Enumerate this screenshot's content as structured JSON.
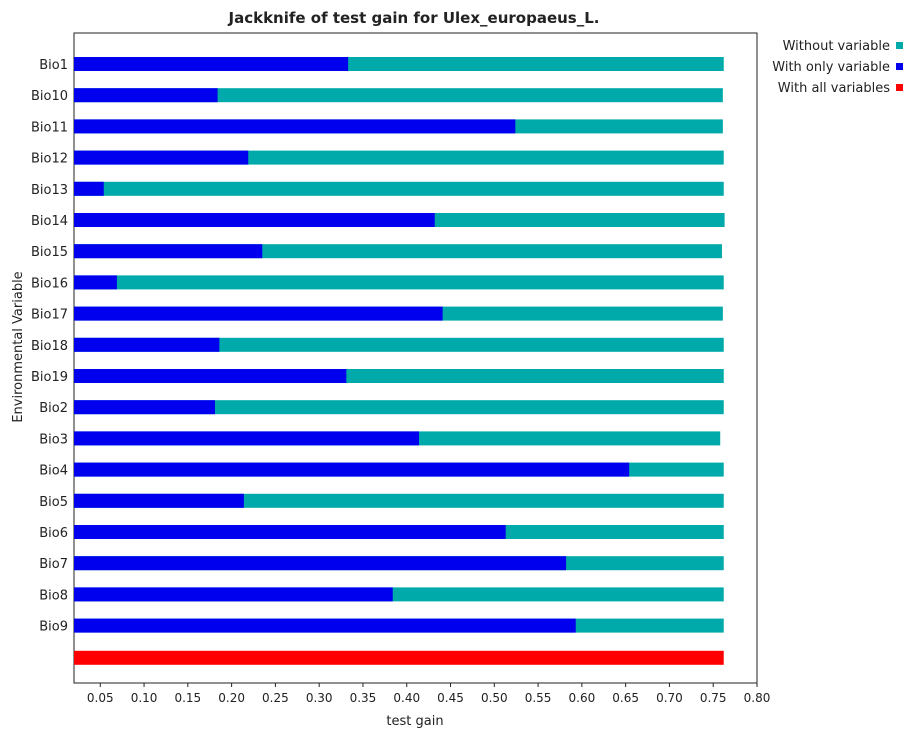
{
  "chart_data": {
    "type": "bar",
    "orientation": "horizontal",
    "title": "Jackknife of test gain for Ulex_europaeus_L.",
    "xlabel": "test gain",
    "ylabel": "Environmental Variable",
    "xlim": [
      0.02,
      0.8
    ],
    "xticks": [
      "0.05",
      "0.10",
      "0.15",
      "0.20",
      "0.25",
      "0.30",
      "0.35",
      "0.40",
      "0.45",
      "0.50",
      "0.55",
      "0.60",
      "0.65",
      "0.70",
      "0.75",
      "0.80"
    ],
    "categories": [
      "Bio1",
      "Bio10",
      "Bio11",
      "Bio12",
      "Bio13",
      "Bio14",
      "Bio15",
      "Bio16",
      "Bio17",
      "Bio18",
      "Bio19",
      "Bio2",
      "Bio3",
      "Bio4",
      "Bio5",
      "Bio6",
      "Bio7",
      "Bio8",
      "Bio9"
    ],
    "series": [
      {
        "name": "Without variable",
        "color": "#00aaaa",
        "values": [
          0.762,
          0.761,
          0.761,
          0.762,
          0.762,
          0.763,
          0.76,
          0.762,
          0.761,
          0.762,
          0.762,
          0.762,
          0.758,
          0.762,
          0.762,
          0.762,
          0.762,
          0.762,
          0.762
        ]
      },
      {
        "name": "With only variable",
        "color": "#0000ee",
        "values": [
          0.333,
          0.184,
          0.524,
          0.219,
          0.054,
          0.432,
          0.235,
          0.069,
          0.441,
          0.186,
          0.331,
          0.181,
          0.414,
          0.654,
          0.214,
          0.513,
          0.582,
          0.384,
          0.593
        ]
      }
    ],
    "all_variables": {
      "name": "With all variables",
      "color": "#ff0000",
      "value": 0.762
    },
    "legend": "top-right"
  }
}
